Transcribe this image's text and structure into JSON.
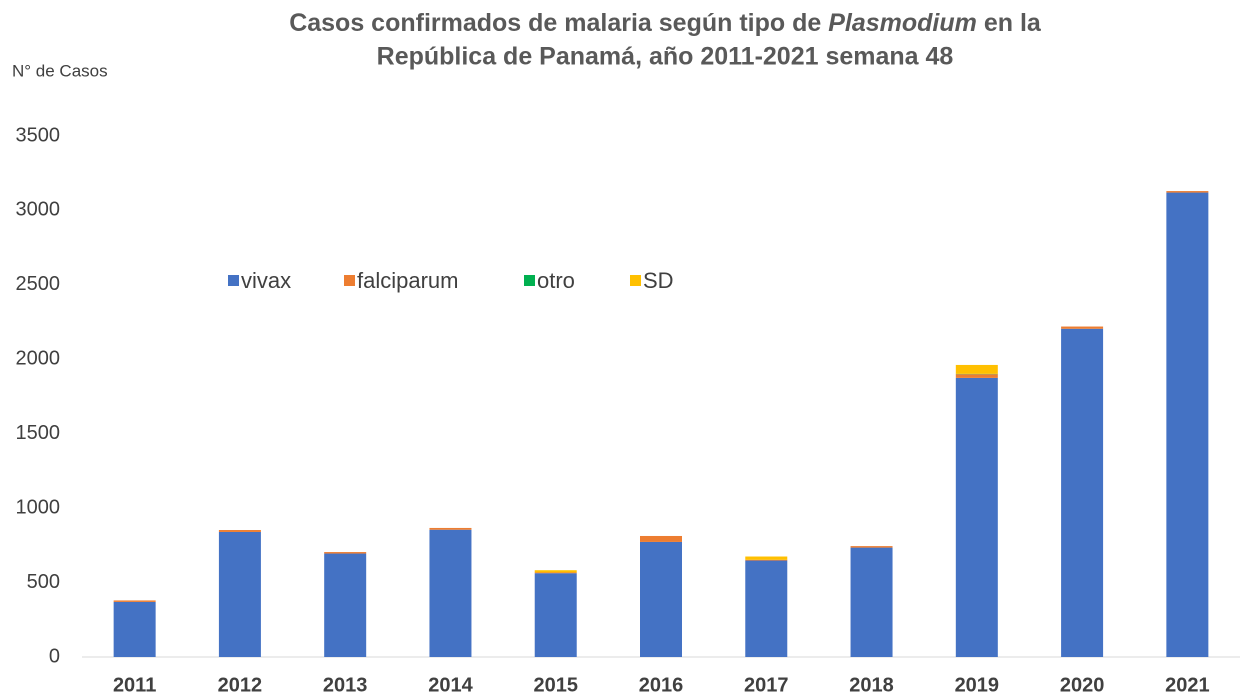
{
  "chart_data": {
    "type": "stacked_bar",
    "title": [
      "Casos confirmados de malaria según tipo de ",
      "Plasmodium",
      " en la",
      "República de Panamá, año 2011-2021 semana 48"
    ],
    "y_label": "N° de Casos",
    "categories": [
      "2011",
      "2012",
      "2013",
      "2014",
      "2015",
      "2016",
      "2017",
      "2018",
      "2019",
      "2020",
      "2021"
    ],
    "series": [
      {
        "name": "vivax",
        "color": "#4472c4",
        "values": [
          370,
          840,
          695,
          855,
          563,
          773,
          648,
          735,
          1875,
          2205,
          3120
        ]
      },
      {
        "name": "falciparum",
        "color": "#ed7d31",
        "values": [
          10,
          13,
          10,
          12,
          5,
          40,
          5,
          10,
          25,
          15,
          10
        ]
      },
      {
        "name": "otro",
        "color": "#00b050",
        "values": [
          0,
          0,
          0,
          0,
          0,
          0,
          0,
          0,
          2,
          0,
          0
        ]
      },
      {
        "name": "SD",
        "color": "#ffc000",
        "values": [
          0,
          0,
          0,
          0,
          15,
          0,
          22,
          0,
          60,
          0,
          0
        ]
      }
    ],
    "ylim": [
      0,
      3500
    ],
    "yticks": [
      0,
      500,
      1000,
      1500,
      2000,
      2500,
      3000,
      3500
    ],
    "grid": false
  }
}
